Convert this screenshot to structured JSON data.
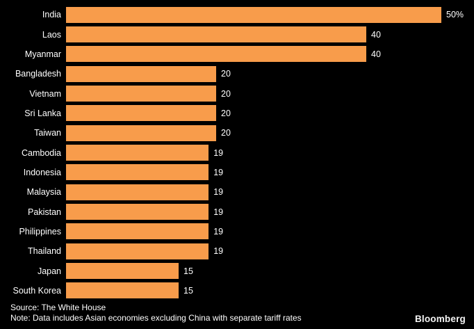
{
  "chart_data": {
    "type": "bar",
    "orientation": "horizontal",
    "title": "",
    "xlabel": "",
    "ylabel": "",
    "xlim": [
      0,
      50
    ],
    "grid": false,
    "legend": "none",
    "background_color": "#000000",
    "bar_color": "#F89C4B",
    "text_color": "#FFFFFF",
    "categories": [
      "India",
      "Laos",
      "Myanmar",
      "Bangladesh",
      "Vietnam",
      "Sri Lanka",
      "Taiwan",
      "Cambodia",
      "Indonesia",
      "Malaysia",
      "Pakistan",
      "Philippines",
      "Thailand",
      "Japan",
      "South Korea"
    ],
    "values": [
      50,
      40,
      40,
      20,
      20,
      20,
      20,
      19,
      19,
      19,
      19,
      19,
      19,
      15,
      15
    ],
    "value_labels": [
      "50%",
      "40",
      "40",
      "20",
      "20",
      "20",
      "20",
      "19",
      "19",
      "19",
      "19",
      "19",
      "19",
      "15",
      "15"
    ]
  },
  "footer": {
    "source": "Source: The White House",
    "note": "Note: Data includes Asian economies excluding China with separate tariff rates",
    "brand": "Bloomberg"
  }
}
